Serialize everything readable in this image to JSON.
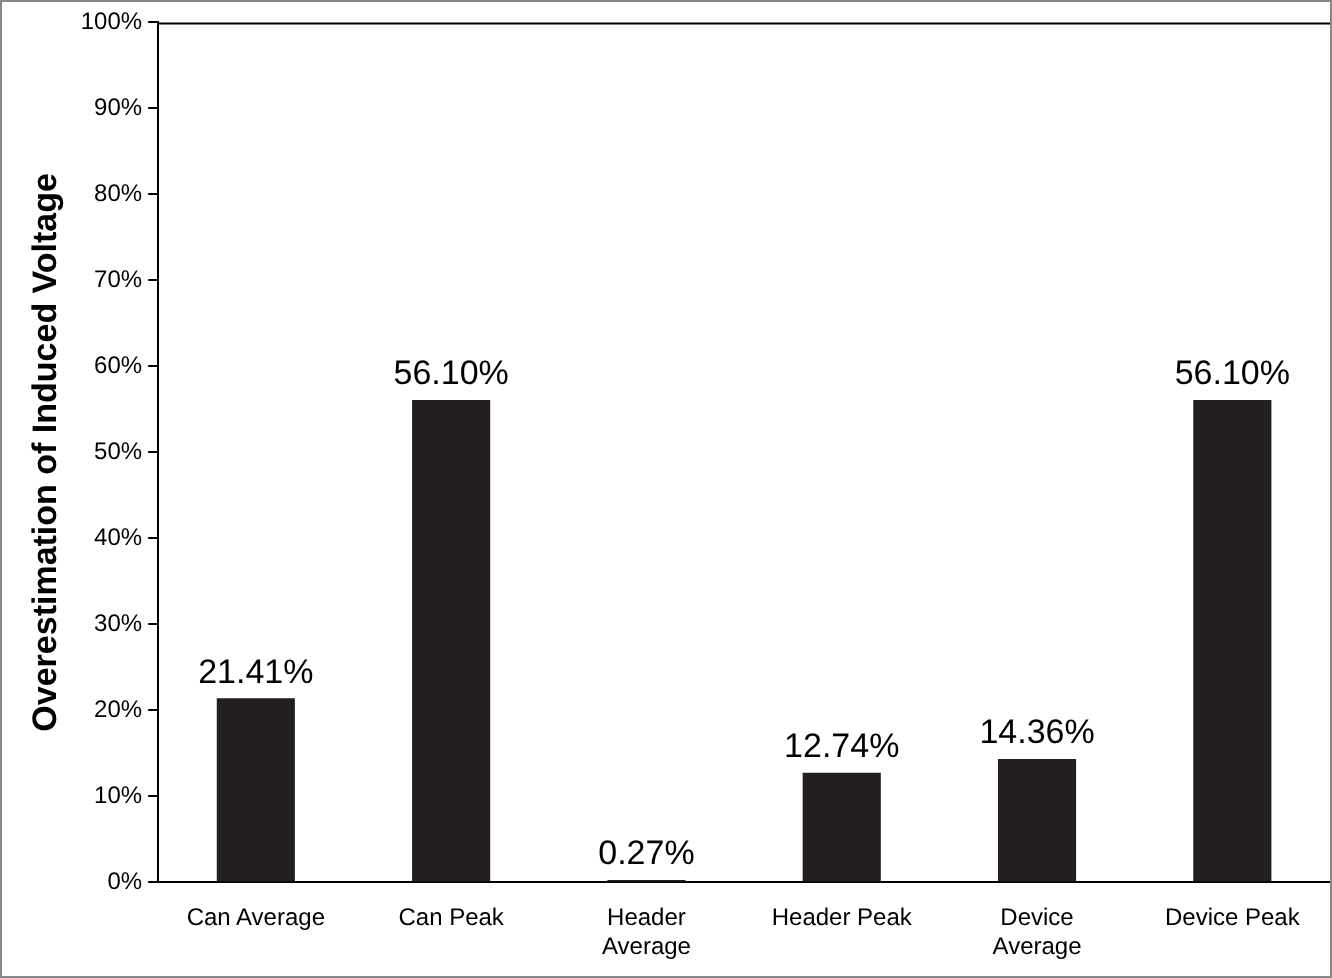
{
  "chart_data": {
    "type": "bar",
    "ylabel": "Overestimation of Induced Voltage",
    "categories": [
      "Can Average",
      "Can Peak",
      "Header Average",
      "Header Peak",
      "Device Average",
      "Device Peak"
    ],
    "values": [
      21.41,
      56.1,
      0.27,
      12.74,
      14.36,
      56.1
    ],
    "value_labels": [
      "21.41%",
      "56.10%",
      "0.27%",
      "12.74%",
      "14.36%",
      "56.10%"
    ],
    "color": "#231f20",
    "ylim": [
      0,
      100
    ],
    "yticks": [
      {
        "value": 0,
        "label": "0%"
      },
      {
        "value": 10,
        "label": "10%"
      },
      {
        "value": 20,
        "label": "20%"
      },
      {
        "value": 30,
        "label": "30%"
      },
      {
        "value": 40,
        "label": "40%"
      },
      {
        "value": 50,
        "label": "50%"
      },
      {
        "value": 60,
        "label": "60%"
      },
      {
        "value": 70,
        "label": "70%"
      },
      {
        "value": 80,
        "label": "80%"
      },
      {
        "value": 90,
        "label": "90%"
      },
      {
        "value": 100,
        "label": "100%"
      }
    ],
    "grid": false,
    "legend": false
  }
}
